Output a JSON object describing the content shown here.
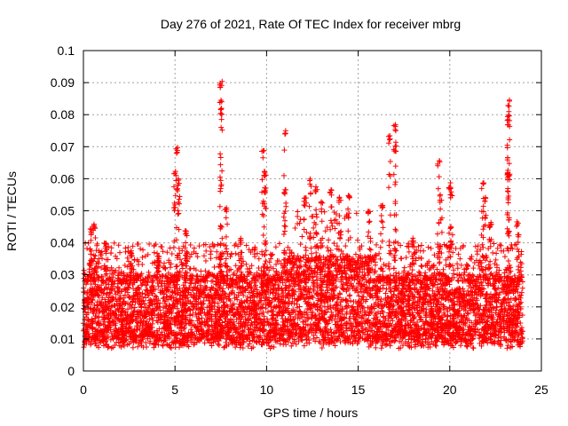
{
  "chart_data": {
    "type": "scatter",
    "title": "Day 276 of 2021, Rate Of TEC Index for receiver mbrg",
    "xlabel": "GPS time / hours",
    "ylabel": "ROTI / TECUs",
    "xlim": [
      0,
      25
    ],
    "ylim": [
      0,
      0.1
    ],
    "x_ticks": [
      0,
      5,
      10,
      15,
      20,
      25
    ],
    "x_tick_labels": [
      "0",
      "5",
      "10",
      "15",
      "20",
      "25"
    ],
    "y_ticks": [
      0,
      0.01,
      0.02,
      0.03,
      0.04,
      0.05,
      0.06,
      0.07,
      0.08,
      0.09,
      0.1
    ],
    "y_tick_labels": [
      "0",
      "0.01",
      "0.02",
      "0.03",
      "0.04",
      "0.05",
      "0.06",
      "0.07",
      "0.08",
      "0.09",
      "0.1"
    ],
    "grid": true,
    "marker": "+",
    "color": "#ff0000",
    "series": [
      {
        "x_range": [
          0,
          24
        ],
        "bulk_y_range": [
          0.004,
          0.03
        ],
        "peaks": [
          [
            0.4,
            0.045
          ],
          [
            0.6,
            0.047
          ],
          [
            1.2,
            0.04
          ],
          [
            2.6,
            0.038
          ],
          [
            4.1,
            0.036
          ],
          [
            5.0,
            0.063
          ],
          [
            5.1,
            0.07
          ],
          [
            5.2,
            0.06
          ],
          [
            5.6,
            0.044
          ],
          [
            7.5,
            0.091
          ],
          [
            7.5,
            0.086
          ],
          [
            7.5,
            0.082
          ],
          [
            7.8,
            0.051
          ],
          [
            8.6,
            0.042
          ],
          [
            9.8,
            0.069
          ],
          [
            9.9,
            0.063
          ],
          [
            9.9,
            0.058
          ],
          [
            11.0,
            0.076
          ],
          [
            11.0,
            0.057
          ],
          [
            12.1,
            0.055
          ],
          [
            12.4,
            0.06
          ],
          [
            12.7,
            0.058
          ],
          [
            13.0,
            0.053
          ],
          [
            13.5,
            0.057
          ],
          [
            14.0,
            0.055
          ],
          [
            14.5,
            0.056
          ],
          [
            15.6,
            0.05
          ],
          [
            16.3,
            0.052
          ],
          [
            16.7,
            0.074
          ],
          [
            17.0,
            0.077
          ],
          [
            17.0,
            0.071
          ],
          [
            18.0,
            0.042
          ],
          [
            19.4,
            0.066
          ],
          [
            19.5,
            0.055
          ],
          [
            20.0,
            0.059
          ],
          [
            20.1,
            0.056
          ],
          [
            21.8,
            0.059
          ],
          [
            21.9,
            0.055
          ],
          [
            22.2,
            0.047
          ],
          [
            23.2,
            0.085
          ],
          [
            23.2,
            0.081
          ],
          [
            23.2,
            0.079
          ],
          [
            23.2,
            0.062
          ],
          [
            23.7,
            0.047
          ]
        ]
      }
    ]
  }
}
